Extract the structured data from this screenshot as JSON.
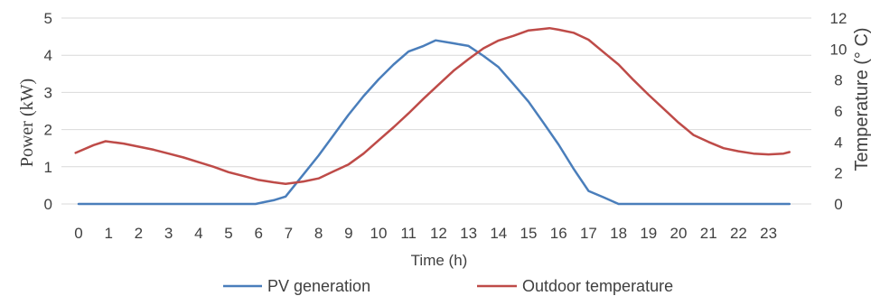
{
  "chart_data": {
    "type": "line",
    "xlabel": "Time (h)",
    "ylabel_left": "Power (kW)",
    "ylabel_right": "Temperature (° C)",
    "x_categories": [
      "0",
      "1",
      "2",
      "3",
      "4",
      "5",
      "6",
      "7",
      "8",
      "9",
      "10",
      "11",
      "12",
      "13",
      "14",
      "15",
      "16",
      "17",
      "18",
      "19",
      "20",
      "21",
      "22",
      "23"
    ],
    "ylim_left": [
      0,
      5
    ],
    "yticks_left": [
      "0",
      "1",
      "2",
      "3",
      "4",
      "5"
    ],
    "ylim_right": [
      0,
      12
    ],
    "yticks_right": [
      "0",
      "2",
      "4",
      "6",
      "8",
      "10",
      "12"
    ],
    "grid": "horizontal",
    "legend_position": "bottom",
    "series": [
      {
        "name": "PV generation",
        "axis": "left",
        "color": "#4a7ebb",
        "x": [
          0,
          1,
          2,
          3,
          4,
          5,
          5.9,
          6.2,
          6.5,
          6.9,
          7.4,
          8,
          8.5,
          9,
          9.5,
          10,
          10.5,
          11,
          11.5,
          11.9,
          12.5,
          13,
          13.5,
          14,
          14.5,
          15,
          15.5,
          16,
          16.5,
          17,
          17.5,
          18,
          18.5,
          19,
          20,
          21,
          22,
          23,
          23.7
        ],
        "y": [
          0,
          0,
          0,
          0,
          0,
          0,
          0,
          0.05,
          0.1,
          0.2,
          0.7,
          1.3,
          1.85,
          2.4,
          2.9,
          3.35,
          3.75,
          4.1,
          4.25,
          4.4,
          4.32,
          4.25,
          3.98,
          3.68,
          3.22,
          2.75,
          2.18,
          1.6,
          0.95,
          0.35,
          0.18,
          0,
          0,
          0,
          0,
          0,
          0,
          0,
          0
        ]
      },
      {
        "name": "Outdoor temperature",
        "axis": "right",
        "color": "#be4b48",
        "x": [
          -0.1,
          0.5,
          0.9,
          1.5,
          2,
          2.5,
          3,
          3.5,
          4,
          4.5,
          5,
          5.5,
          6,
          6.5,
          6.9,
          7.5,
          8,
          8.5,
          9,
          9.5,
          10,
          10.5,
          11,
          11.5,
          12,
          12.5,
          13,
          13.5,
          14,
          14.5,
          15,
          15.5,
          15.7,
          16,
          16.5,
          17,
          17.5,
          18,
          18.5,
          19,
          19.5,
          20,
          20.5,
          21,
          21.5,
          22,
          22.5,
          23,
          23.5,
          23.7
        ],
        "y": [
          3.3,
          3.8,
          4.05,
          3.9,
          3.7,
          3.5,
          3.25,
          3,
          2.7,
          2.4,
          2.05,
          1.8,
          1.55,
          1.4,
          1.3,
          1.45,
          1.65,
          2.1,
          2.55,
          3.25,
          4.1,
          4.95,
          5.85,
          6.8,
          7.7,
          8.6,
          9.35,
          10.05,
          10.55,
          10.85,
          11.2,
          11.3,
          11.35,
          11.25,
          11.05,
          10.6,
          9.8,
          9,
          8,
          7.05,
          6.15,
          5.25,
          4.45,
          4,
          3.6,
          3.4,
          3.25,
          3.2,
          3.25,
          3.35
        ]
      }
    ]
  }
}
